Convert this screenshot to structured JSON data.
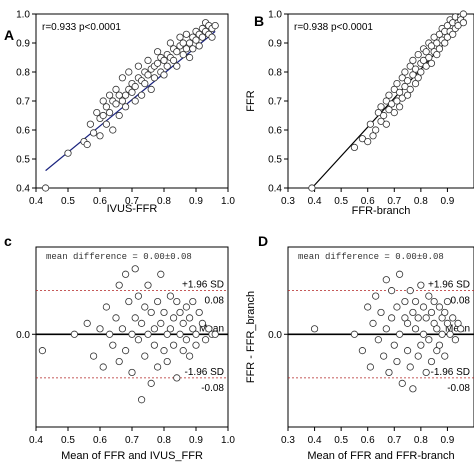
{
  "chart_data": [
    {
      "panel": "A",
      "type": "scatter",
      "annotation": "r=0.933 p<0.0001",
      "xlabel": "IVUS-FFR",
      "ylabel": "",
      "xlim": [
        0.4,
        1.0
      ],
      "ylim": [
        0.4,
        1.0
      ],
      "xticks": [
        "0.4",
        "0.5",
        "0.6",
        "0.7",
        "0.8",
        "0.9",
        "1.0"
      ],
      "yticks": [
        "0.4",
        "0.5",
        "0.6",
        "0.7",
        "0.8",
        "0.9",
        "1.0"
      ],
      "regression": {
        "x": [
          0.43,
          0.96
        ],
        "y": [
          0.46,
          0.94
        ]
      },
      "x": [
        0.43,
        0.5,
        0.55,
        0.56,
        0.57,
        0.58,
        0.59,
        0.6,
        0.6,
        0.61,
        0.61,
        0.62,
        0.62,
        0.63,
        0.63,
        0.64,
        0.64,
        0.65,
        0.65,
        0.66,
        0.66,
        0.67,
        0.67,
        0.68,
        0.68,
        0.69,
        0.69,
        0.7,
        0.7,
        0.71,
        0.71,
        0.72,
        0.72,
        0.73,
        0.73,
        0.74,
        0.74,
        0.75,
        0.75,
        0.76,
        0.76,
        0.77,
        0.77,
        0.78,
        0.78,
        0.79,
        0.79,
        0.8,
        0.8,
        0.81,
        0.81,
        0.82,
        0.82,
        0.83,
        0.83,
        0.84,
        0.84,
        0.85,
        0.85,
        0.86,
        0.86,
        0.87,
        0.87,
        0.88,
        0.88,
        0.89,
        0.89,
        0.9,
        0.9,
        0.91,
        0.91,
        0.92,
        0.92,
        0.93,
        0.93,
        0.94,
        0.94,
        0.95,
        0.95,
        0.96
      ],
      "y": [
        0.4,
        0.52,
        0.56,
        0.55,
        0.62,
        0.59,
        0.66,
        0.64,
        0.58,
        0.65,
        0.7,
        0.62,
        0.68,
        0.66,
        0.72,
        0.6,
        0.7,
        0.69,
        0.74,
        0.65,
        0.72,
        0.7,
        0.78,
        0.72,
        0.68,
        0.74,
        0.8,
        0.73,
        0.76,
        0.75,
        0.7,
        0.78,
        0.82,
        0.77,
        0.72,
        0.8,
        0.76,
        0.79,
        0.84,
        0.81,
        0.74,
        0.82,
        0.78,
        0.83,
        0.87,
        0.8,
        0.85,
        0.84,
        0.79,
        0.86,
        0.82,
        0.85,
        0.9,
        0.84,
        0.88,
        0.87,
        0.82,
        0.89,
        0.92,
        0.86,
        0.9,
        0.88,
        0.93,
        0.9,
        0.85,
        0.92,
        0.88,
        0.94,
        0.91,
        0.93,
        0.89,
        0.95,
        0.92,
        0.94,
        0.97,
        0.93,
        0.96,
        0.95,
        0.92,
        0.96
      ]
    },
    {
      "panel": "B",
      "type": "scatter",
      "annotation": "r=0.938 p<0.0001",
      "xlabel": "FFR-branch",
      "ylabel": "FFR",
      "xlim": [
        0.3,
        1.0
      ],
      "ylim": [
        0.4,
        1.0
      ],
      "xticks": [
        "0.3",
        "0.4",
        "0.5",
        "0.6",
        "0.7",
        "0.8",
        "0.9"
      ],
      "yticks": [
        "0.4",
        "0.5",
        "0.6",
        "0.7",
        "0.8",
        "0.9",
        "1.0"
      ],
      "regression": {
        "x": [
          0.39,
          0.97
        ],
        "y": [
          0.4,
          0.98
        ]
      },
      "x": [
        0.39,
        0.55,
        0.58,
        0.6,
        0.61,
        0.62,
        0.63,
        0.64,
        0.65,
        0.65,
        0.66,
        0.67,
        0.67,
        0.68,
        0.68,
        0.69,
        0.7,
        0.7,
        0.71,
        0.71,
        0.72,
        0.72,
        0.73,
        0.73,
        0.74,
        0.74,
        0.75,
        0.75,
        0.76,
        0.76,
        0.77,
        0.77,
        0.78,
        0.78,
        0.79,
        0.79,
        0.8,
        0.8,
        0.81,
        0.81,
        0.82,
        0.82,
        0.83,
        0.83,
        0.84,
        0.84,
        0.85,
        0.85,
        0.86,
        0.86,
        0.87,
        0.87,
        0.88,
        0.88,
        0.89,
        0.89,
        0.9,
        0.9,
        0.91,
        0.91,
        0.92,
        0.92,
        0.93,
        0.93,
        0.94,
        0.94,
        0.95,
        0.95,
        0.96,
        0.96
      ],
      "y": [
        0.4,
        0.54,
        0.57,
        0.56,
        0.62,
        0.58,
        0.6,
        0.66,
        0.63,
        0.68,
        0.65,
        0.7,
        0.62,
        0.67,
        0.72,
        0.69,
        0.74,
        0.66,
        0.7,
        0.76,
        0.73,
        0.68,
        0.78,
        0.71,
        0.75,
        0.8,
        0.77,
        0.72,
        0.82,
        0.74,
        0.79,
        0.84,
        0.76,
        0.81,
        0.86,
        0.78,
        0.83,
        0.8,
        0.88,
        0.84,
        0.82,
        0.87,
        0.9,
        0.85,
        0.83,
        0.89,
        0.87,
        0.92,
        0.86,
        0.9,
        0.93,
        0.88,
        0.91,
        0.95,
        0.9,
        0.94,
        0.96,
        0.92,
        0.94,
        0.98,
        0.93,
        0.97,
        0.99,
        0.95,
        0.97,
        0.96,
        0.99,
        0.98,
        0.97,
        1.0
      ]
    },
    {
      "panel": "C",
      "type": "scatter",
      "subtype": "bland-altman",
      "annotation": "mean difference = 0.00±0.08",
      "xlabel": "Mean of FFR and IVUS_FFR",
      "ylabel": "",
      "xlim": [
        0.4,
        1.0
      ],
      "ylim": [
        -0.17,
        0.16
      ],
      "xticks": [
        "0.4",
        "0.5",
        "0.6",
        "0.7",
        "0.8",
        "0.9",
        "1.0"
      ],
      "lines": {
        "upper": 0.08,
        "mean": 0.0,
        "lower": -0.08
      },
      "line_labels": {
        "upper": "+1.96 SD",
        "upper_value": "0.08",
        "mean": "Mean",
        "lower": "-1.96 SD",
        "lower_value": "-0.08"
      },
      "x": [
        0.42,
        0.52,
        0.56,
        0.58,
        0.6,
        0.61,
        0.62,
        0.63,
        0.64,
        0.65,
        0.66,
        0.66,
        0.67,
        0.68,
        0.68,
        0.69,
        0.7,
        0.7,
        0.71,
        0.71,
        0.72,
        0.72,
        0.73,
        0.73,
        0.74,
        0.74,
        0.75,
        0.75,
        0.76,
        0.76,
        0.77,
        0.77,
        0.78,
        0.78,
        0.79,
        0.79,
        0.8,
        0.8,
        0.81,
        0.81,
        0.82,
        0.82,
        0.83,
        0.83,
        0.84,
        0.84,
        0.85,
        0.85,
        0.86,
        0.86,
        0.87,
        0.87,
        0.88,
        0.88,
        0.89,
        0.89,
        0.9,
        0.9,
        0.91,
        0.92,
        0.93,
        0.94,
        0.95,
        0.96
      ],
      "y": [
        -0.03,
        0.0,
        0.02,
        -0.04,
        0.01,
        -0.06,
        0.05,
        0.0,
        -0.02,
        0.03,
        0.09,
        -0.05,
        0.01,
        0.11,
        -0.03,
        0.06,
        0.0,
        -0.07,
        0.03,
        0.12,
        -0.01,
        0.07,
        -0.12,
        0.02,
        0.05,
        -0.04,
        0.09,
        0.0,
        -0.09,
        0.04,
        0.01,
        -0.02,
        0.06,
        -0.06,
        0.02,
        0.11,
        -0.03,
        0.04,
        0.0,
        -0.05,
        0.07,
        0.01,
        -0.02,
        0.03,
        0.06,
        -0.08,
        0.0,
        0.04,
        -0.03,
        0.02,
        0.05,
        -0.01,
        0.03,
        -0.04,
        0.01,
        0.06,
        0.0,
        -0.02,
        0.04,
        0.02,
        -0.01,
        0.01,
        0.0,
        0.0
      ]
    },
    {
      "panel": "D",
      "type": "scatter",
      "subtype": "bland-altman",
      "annotation": "mean difference = 0.00±0.08",
      "xlabel": "Mean of FFR and  FFR-branch",
      "ylabel": "FFR - FFR_branch",
      "xlim": [
        0.3,
        1.0
      ],
      "ylim": [
        -0.17,
        0.16
      ],
      "xticks": [
        "0.3",
        "0.4",
        "0.5",
        "0.6",
        "0.7",
        "0.8",
        "0.9"
      ],
      "lines": {
        "upper": 0.08,
        "mean": 0.0,
        "lower": -0.08
      },
      "line_labels": {
        "upper": "+1.96 SD",
        "upper_value": "0.08",
        "mean": "Mean",
        "lower": "-1.96 SD",
        "lower_value": "-0.08"
      },
      "x": [
        0.4,
        0.55,
        0.58,
        0.6,
        0.61,
        0.62,
        0.63,
        0.64,
        0.65,
        0.66,
        0.67,
        0.67,
        0.68,
        0.69,
        0.69,
        0.7,
        0.71,
        0.71,
        0.72,
        0.72,
        0.73,
        0.74,
        0.74,
        0.75,
        0.75,
        0.76,
        0.76,
        0.77,
        0.77,
        0.78,
        0.78,
        0.79,
        0.79,
        0.8,
        0.8,
        0.81,
        0.81,
        0.82,
        0.82,
        0.83,
        0.83,
        0.84,
        0.84,
        0.85,
        0.85,
        0.86,
        0.86,
        0.87,
        0.87,
        0.88,
        0.88,
        0.89,
        0.89,
        0.9,
        0.9,
        0.91,
        0.92,
        0.93,
        0.94,
        0.95
      ],
      "y": [
        0.01,
        0.0,
        -0.03,
        0.05,
        -0.06,
        0.02,
        0.07,
        -0.01,
        0.04,
        -0.04,
        0.1,
        0.01,
        -0.07,
        0.03,
        0.08,
        -0.02,
        0.05,
        -0.05,
        0.11,
        0.0,
        -0.09,
        0.03,
        0.06,
        -0.03,
        0.02,
        0.08,
        -0.06,
        0.04,
        -0.1,
        0.01,
        0.06,
        -0.04,
        0.03,
        0.09,
        -0.02,
        0.05,
        0.0,
        -0.07,
        0.03,
        0.07,
        -0.01,
        0.04,
        -0.05,
        0.02,
        0.06,
        -0.03,
        0.01,
        0.05,
        -0.02,
        0.03,
        0.0,
        0.04,
        -0.04,
        0.02,
        0.06,
        0.0,
        0.03,
        -0.01,
        0.02,
        0.01
      ]
    }
  ]
}
